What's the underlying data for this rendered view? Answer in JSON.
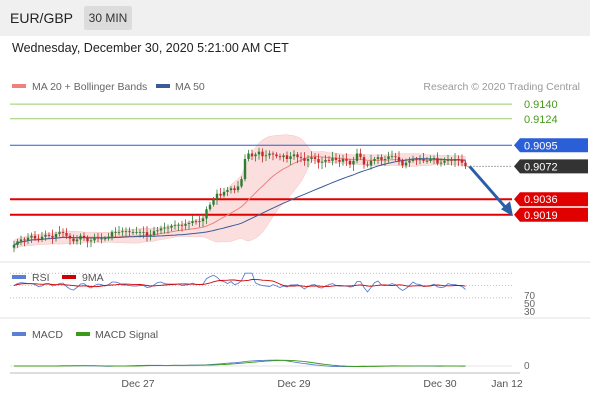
{
  "header": {
    "pair": "EUR/GBP",
    "interval": "30 MIN",
    "datetime": "Wednesday, December 30, 2020 5:21:00 AM CET"
  },
  "legend": {
    "ma20": "MA 20 + Bollinger Bands",
    "ma50": "MA 50",
    "credit": "Research © 2020 Trading Central",
    "rsi": "RSI",
    "rsi_ma": "9MA",
    "macd": "MACD",
    "macd_signal": "MACD Signal"
  },
  "colors": {
    "ma20": "#f08080",
    "ma50": "#3a5a9a",
    "bollinger_fill": "#fbdede",
    "candle_up": "#2e7d32",
    "candle_down": "#c62828",
    "level_green": "#4a9a1a",
    "level_blue": "#2a5fd8",
    "level_red": "#e00000",
    "current": "#333333",
    "arrow": "#2a5fa8",
    "rsi": "#5b7fd4",
    "rsi_ma": "#d00000",
    "macd": "#5b7fd4",
    "macd_signal": "#3a9a1a"
  },
  "chart_data": {
    "type": "candlestick",
    "ylim": [
      0.8975,
      0.915
    ],
    "x_ticks": [
      "Dec 27",
      "Dec 29",
      "Dec 30",
      "Jan 12"
    ],
    "levels": [
      {
        "value": 0.914,
        "label": "0.9140",
        "kind": "resistance"
      },
      {
        "value": 0.9124,
        "label": "0.9124",
        "kind": "resistance"
      },
      {
        "value": 0.9095,
        "label": "0.9095",
        "kind": "pivot"
      },
      {
        "value": 0.9072,
        "label": "0.9072",
        "kind": "current"
      },
      {
        "value": 0.9036,
        "label": "0.9036",
        "kind": "target"
      },
      {
        "value": 0.9019,
        "label": "0.9019",
        "kind": "target"
      }
    ],
    "close": [
      0.8986,
      0.899,
      0.8992,
      0.8991,
      0.8994,
      0.8996,
      0.8993,
      0.8992,
      0.8995,
      0.8997,
      0.8996,
      0.8994,
      0.8998,
      0.9,
      0.8999,
      0.8996,
      0.8993,
      0.899,
      0.8992,
      0.8996,
      0.8994,
      0.899,
      0.8991,
      0.8994,
      0.8993,
      0.8993,
      0.8993,
      0.8995,
      0.9,
      0.9,
      0.9,
      0.9001,
      0.9001,
      0.9,
      0.9,
      0.9,
      0.9,
      0.9,
      0.8996,
      0.8997,
      0.9001,
      0.9002,
      0.9004,
      0.9005,
      0.9005,
      0.9007,
      0.9008,
      0.9008,
      0.9007,
      0.9009,
      0.901,
      0.9012,
      0.9011,
      0.9012,
      0.9015,
      0.9025,
      0.903,
      0.9036,
      0.9042,
      0.904,
      0.9044,
      0.9046,
      0.9048,
      0.9046,
      0.905,
      0.9058,
      0.908,
      0.9086,
      0.9083,
      0.9085,
      0.9088,
      0.9083,
      0.9084,
      0.9086,
      0.9085,
      0.9083,
      0.9082,
      0.9084,
      0.908,
      0.9083,
      0.9085,
      0.9082,
      0.9081,
      0.9078,
      0.908,
      0.9082,
      0.908,
      0.9076,
      0.9077,
      0.9079,
      0.9078,
      0.9081,
      0.9079,
      0.9077,
      0.908,
      0.9078,
      0.9074,
      0.9078,
      0.9086,
      0.9082,
      0.9074,
      0.9073,
      0.9078,
      0.908,
      0.9082,
      0.9079,
      0.908,
      0.9083,
      0.9083,
      0.9082,
      0.9078,
      0.9073,
      0.9076,
      0.9078,
      0.908,
      0.9079,
      0.908,
      0.9078,
      0.9078,
      0.908,
      0.9081,
      0.9075,
      0.9076,
      0.9078,
      0.9079,
      0.9078,
      0.908,
      0.9079,
      0.9076,
      0.9072
    ],
    "rsi": {
      "ticks": [
        70,
        50,
        30
      ]
    },
    "macd": {
      "ticks": [
        0
      ]
    }
  }
}
